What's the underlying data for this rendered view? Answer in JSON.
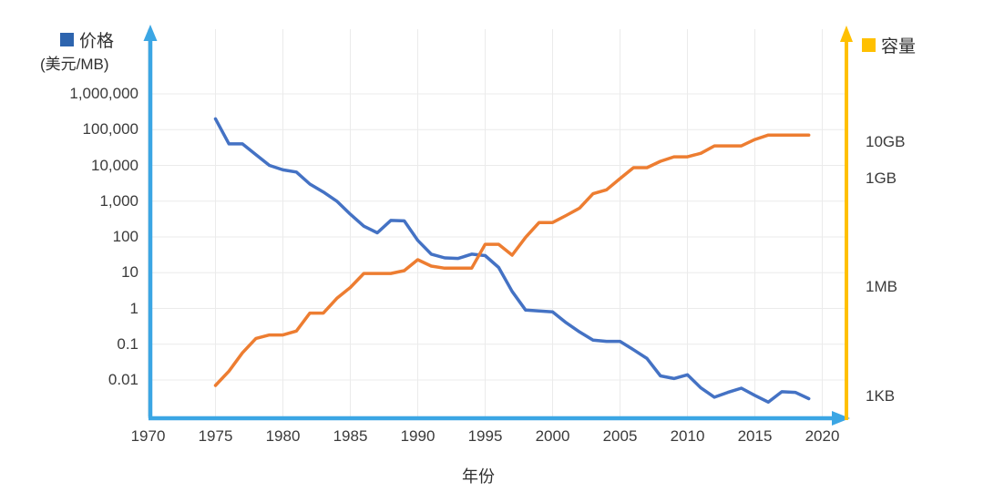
{
  "legend": {
    "price_label": "价格",
    "price_unit": "(美元/MB)",
    "capacity_label": "容量"
  },
  "axes": {
    "x_title": "年份",
    "x_tick_labels": [
      "1970",
      "1975",
      "1980",
      "1985",
      "1990",
      "1995",
      "2000",
      "2005",
      "2010",
      "2015",
      "2020"
    ],
    "left_tick_labels": [
      "1,000,000",
      "100,000",
      "10,000",
      "1,000",
      "100",
      "10",
      "1",
      "0.1",
      "0.01"
    ],
    "right_tick_labels": [
      "10GB",
      "1GB",
      "1MB",
      "1KB"
    ]
  },
  "colors": {
    "price_line": "#4472C4",
    "capacity_line": "#ED7D31",
    "price_legend_swatch": "#2D64AE",
    "capacity_legend_swatch": "#FFC000",
    "left_bottom_axis": "#3BA6E4",
    "right_axis": "#FFC000",
    "gridline": "#ebebeb",
    "text": "#3b3b3b"
  },
  "chart_data": {
    "type": "line",
    "title": "",
    "x_label": "年份",
    "x": [
      1975,
      1976,
      1977,
      1978,
      1979,
      1980,
      1981,
      1982,
      1983,
      1984,
      1985,
      1986,
      1987,
      1988,
      1989,
      1990,
      1991,
      1992,
      1993,
      1994,
      1995,
      1996,
      1997,
      1998,
      1999,
      2000,
      2001,
      2002,
      2003,
      2004,
      2005,
      2006,
      2007,
      2008,
      2009,
      2010,
      2011,
      2012,
      2013,
      2014,
      2015,
      2016,
      2017,
      2018,
      2019
    ],
    "series": [
      {
        "name": "价格",
        "unit": "美元/MB",
        "axis": "left",
        "values": [
          200000,
          40000,
          40000,
          20000,
          10000,
          7500,
          6500,
          3000,
          1800,
          1000,
          430,
          200,
          130,
          290,
          280,
          80,
          33,
          26,
          25,
          33,
          30,
          14,
          3,
          0.9,
          0.85,
          0.8,
          0.4,
          0.22,
          0.13,
          0.12,
          0.12,
          0.07,
          0.04,
          0.013,
          0.011,
          0.014,
          0.006,
          0.0033,
          0.0045,
          0.0059,
          0.0037,
          0.0024,
          0.0047,
          0.0045,
          0.003
        ]
      },
      {
        "name": "容量",
        "unit": "KB",
        "axis": "right",
        "values": [
          2,
          5,
          16,
          40,
          50,
          50,
          64,
          200,
          200,
          512,
          1024,
          2500,
          2500,
          2500,
          3000,
          6000,
          4000,
          3500,
          3500,
          3500,
          16000,
          16000,
          8000,
          25000,
          64000,
          64000,
          100000,
          160000,
          400000,
          512000,
          1048576,
          2097152,
          2097152,
          3145728,
          4194304,
          4194304,
          5242880,
          8388608,
          8388608,
          8388608,
          12582912,
          16777216,
          16777216,
          16777216,
          16777216
        ]
      }
    ],
    "x_axis": {
      "ticks": [
        1970,
        1975,
        1980,
        1985,
        1990,
        1995,
        2000,
        2005,
        2010,
        2015,
        2020
      ],
      "range": [
        1970,
        2022
      ]
    },
    "left_axis": {
      "scale": "log",
      "range": [
        0.01,
        1000000
      ],
      "ticks": [
        1000000,
        100000,
        10000,
        1000,
        100,
        10,
        1,
        0.1,
        0.01
      ]
    },
    "right_axis": {
      "scale": "log",
      "ticks_kb": [
        10485760,
        1048576,
        1024,
        1
      ],
      "tick_labels": [
        "10GB",
        "1GB",
        "1MB",
        "1KB"
      ]
    },
    "grid": true,
    "legend_position": "top-corners"
  }
}
